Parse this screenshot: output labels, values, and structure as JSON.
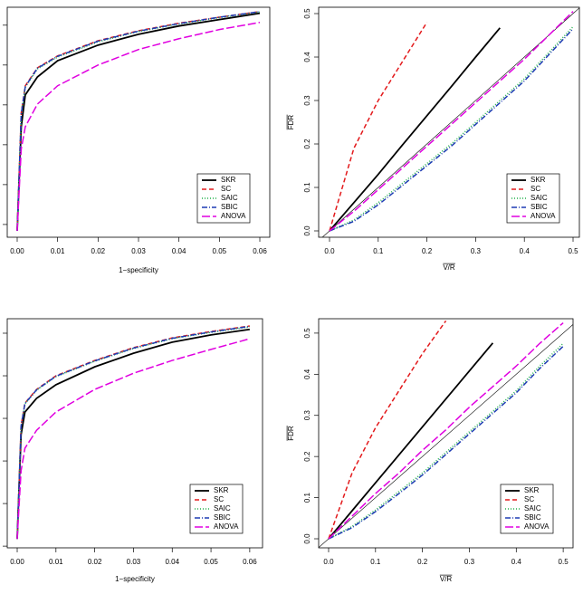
{
  "chart_data": [
    {
      "type": "line",
      "xlabel": "1−specificity",
      "x": [
        0,
        0.001,
        0.002,
        0.005,
        0.01,
        0.02,
        0.03,
        0.04,
        0.05,
        0.06
      ],
      "series": [
        {
          "name": "SKR",
          "color": "#000000",
          "dash": "solid",
          "values": [
            0.384,
            0.645,
            0.725,
            0.77,
            0.811,
            0.85,
            0.877,
            0.898,
            0.914,
            0.93
          ]
        },
        {
          "name": "SC",
          "color": "#e31a1c",
          "dash": "dashed",
          "values": [
            0.384,
            0.68,
            0.748,
            0.793,
            0.823,
            0.861,
            0.886,
            0.905,
            0.92,
            0.934
          ]
        },
        {
          "name": "SAIC",
          "color": "#22b14c",
          "dash": "dotted",
          "values": [
            0.384,
            0.675,
            0.744,
            0.79,
            0.82,
            0.858,
            0.884,
            0.903,
            0.919,
            0.933
          ]
        },
        {
          "name": "SBIC",
          "color": "#1f3cb4",
          "dash": "dotdash",
          "values": [
            0.384,
            0.678,
            0.746,
            0.792,
            0.822,
            0.86,
            0.885,
            0.904,
            0.92,
            0.934
          ]
        },
        {
          "name": "ANOVA",
          "color": "#e000e0",
          "dash": "longdash",
          "values": [
            0.384,
            0.589,
            0.645,
            0.702,
            0.748,
            0.8,
            0.839,
            0.866,
            0.889,
            0.907
          ]
        }
      ],
      "xlim": [
        -0.00246,
        0.06246
      ],
      "ylim": [
        0.368,
        0.945
      ],
      "xticks": [
        {
          "value": 0,
          "label": "0.00"
        },
        0.01,
        0.02,
        0.03,
        0.04,
        0.05,
        0.06
      ],
      "yticks": [
        0.4,
        0.5,
        0.6,
        0.7,
        0.8,
        0.9
      ],
      "ytick_labels": false,
      "diagonal": false,
      "legend": "bottomright"
    },
    {
      "type": "line",
      "xlabel": "V/R",
      "ylabel": "FDR",
      "x": [
        0,
        0.05,
        0.1,
        0.15,
        0.2,
        0.25,
        0.3,
        0.35,
        0.4,
        0.45,
        0.5
      ],
      "series": [
        {
          "name": "SKR",
          "color": "#000000",
          "dash": "solid",
          "values": [
            0,
            0.065,
            0.13,
            0.198,
            0.265,
            0.332,
            0.4,
            0.467,
            null,
            null,
            null
          ]
        },
        {
          "name": "SC",
          "color": "#e31a1c",
          "dash": "dashed",
          "values": [
            0,
            0.19,
            0.3,
            0.39,
            0.48,
            null,
            null,
            null,
            null,
            null,
            null
          ]
        },
        {
          "name": "SAIC",
          "color": "#22b14c",
          "dash": "dotted",
          "values": [
            0,
            0.025,
            0.065,
            0.11,
            0.155,
            0.2,
            0.25,
            0.3,
            0.35,
            0.41,
            0.47
          ]
        },
        {
          "name": "SBIC",
          "color": "#1f3cb4",
          "dash": "dotdash",
          "values": [
            0,
            0.022,
            0.06,
            0.105,
            0.15,
            0.195,
            0.245,
            0.295,
            0.345,
            0.405,
            0.465
          ]
        },
        {
          "name": "ANOVA",
          "color": "#e000e0",
          "dash": "longdash",
          "values": [
            0,
            0.045,
            0.095,
            0.145,
            0.195,
            0.245,
            0.295,
            0.345,
            0.395,
            0.45,
            0.505
          ]
        }
      ],
      "xlim": [
        -0.0223,
        0.513
      ],
      "ylim": [
        -0.0146,
        0.5146
      ],
      "xticks": [
        {
          "value": 0,
          "label": "0.0"
        },
        0.1,
        0.2,
        0.3,
        0.4,
        0.5
      ],
      "yticks": [
        {
          "value": 0,
          "label": "0.0"
        },
        0.1,
        0.2,
        0.3,
        0.4,
        0.5
      ],
      "ytick_labels": true,
      "diagonal": true,
      "legend": "bottomright"
    },
    {
      "type": "line",
      "xlabel": "1−specificity",
      "x": [
        0,
        0.001,
        0.002,
        0.005,
        0.01,
        0.02,
        0.03,
        0.04,
        0.05,
        0.06
      ],
      "series": [
        {
          "name": "SKR",
          "color": "#000000",
          "dash": "solid",
          "values": [
            0.417,
            0.662,
            0.715,
            0.747,
            0.779,
            0.821,
            0.853,
            0.879,
            0.896,
            0.909
          ]
        },
        {
          "name": "SC",
          "color": "#e31a1c",
          "dash": "dashed",
          "values": [
            0.417,
            0.683,
            0.736,
            0.768,
            0.8,
            0.836,
            0.866,
            0.889,
            0.904,
            0.917
          ]
        },
        {
          "name": "SAIC",
          "color": "#22b14c",
          "dash": "dotted",
          "values": [
            0.417,
            0.681,
            0.734,
            0.766,
            0.798,
            0.834,
            0.864,
            0.887,
            0.902,
            0.915
          ]
        },
        {
          "name": "SBIC",
          "color": "#1f3cb4",
          "dash": "dotdash",
          "values": [
            0.417,
            0.682,
            0.735,
            0.767,
            0.799,
            0.835,
            0.865,
            0.888,
            0.903,
            0.916
          ]
        },
        {
          "name": "ANOVA",
          "color": "#e000e0",
          "dash": "longdash",
          "values": [
            0.417,
            0.577,
            0.63,
            0.672,
            0.715,
            0.768,
            0.806,
            0.836,
            0.862,
            0.887
          ]
        }
      ],
      "xlim": [
        -0.00257,
        0.0633
      ],
      "ylim": [
        0.396,
        0.934
      ],
      "xticks": [
        {
          "value": 0,
          "label": "0.00"
        },
        0.01,
        0.02,
        0.03,
        0.04,
        0.05,
        0.06
      ],
      "yticks": [
        0.4,
        0.5,
        0.6,
        0.7,
        0.8,
        0.9
      ],
      "ytick_labels": false,
      "diagonal": false,
      "legend": "bottomright"
    },
    {
      "type": "line",
      "xlabel": "V/R",
      "ylabel": "FDR",
      "x": [
        0,
        0.05,
        0.1,
        0.15,
        0.2,
        0.25,
        0.3,
        0.35,
        0.4,
        0.45,
        0.5
      ],
      "series": [
        {
          "name": "SKR",
          "color": "#000000",
          "dash": "solid",
          "values": [
            0,
            0.068,
            0.136,
            0.204,
            0.272,
            0.34,
            0.408,
            0.476,
            null,
            null,
            null
          ]
        },
        {
          "name": "SC",
          "color": "#e31a1c",
          "dash": "dashed",
          "values": [
            0,
            0.16,
            0.27,
            0.36,
            0.45,
            0.53,
            null,
            null,
            null,
            null,
            null
          ]
        },
        {
          "name": "SAIC",
          "color": "#22b14c",
          "dash": "dotted",
          "values": [
            0,
            0.03,
            0.07,
            0.115,
            0.16,
            0.21,
            0.26,
            0.31,
            0.36,
            0.42,
            0.475
          ]
        },
        {
          "name": "SBIC",
          "color": "#1f3cb4",
          "dash": "dotdash",
          "values": [
            0,
            0.027,
            0.066,
            0.11,
            0.155,
            0.205,
            0.255,
            0.305,
            0.355,
            0.414,
            0.468
          ]
        },
        {
          "name": "ANOVA",
          "color": "#e000e0",
          "dash": "longdash",
          "values": [
            0,
            0.055,
            0.11,
            0.16,
            0.215,
            0.265,
            0.32,
            0.37,
            0.42,
            0.475,
            0.525
          ]
        }
      ],
      "xlim": [
        -0.0212,
        0.521
      ],
      "ylim": [
        -0.022,
        0.535
      ],
      "xticks": [
        {
          "value": 0,
          "label": "0.0"
        },
        0.1,
        0.2,
        0.3,
        0.4,
        0.5
      ],
      "yticks": [
        {
          "value": 0,
          "label": "0.0"
        },
        0.1,
        0.2,
        0.3,
        0.4,
        0.5
      ],
      "ytick_labels": true,
      "diagonal": true,
      "legend": "bottomright"
    }
  ]
}
